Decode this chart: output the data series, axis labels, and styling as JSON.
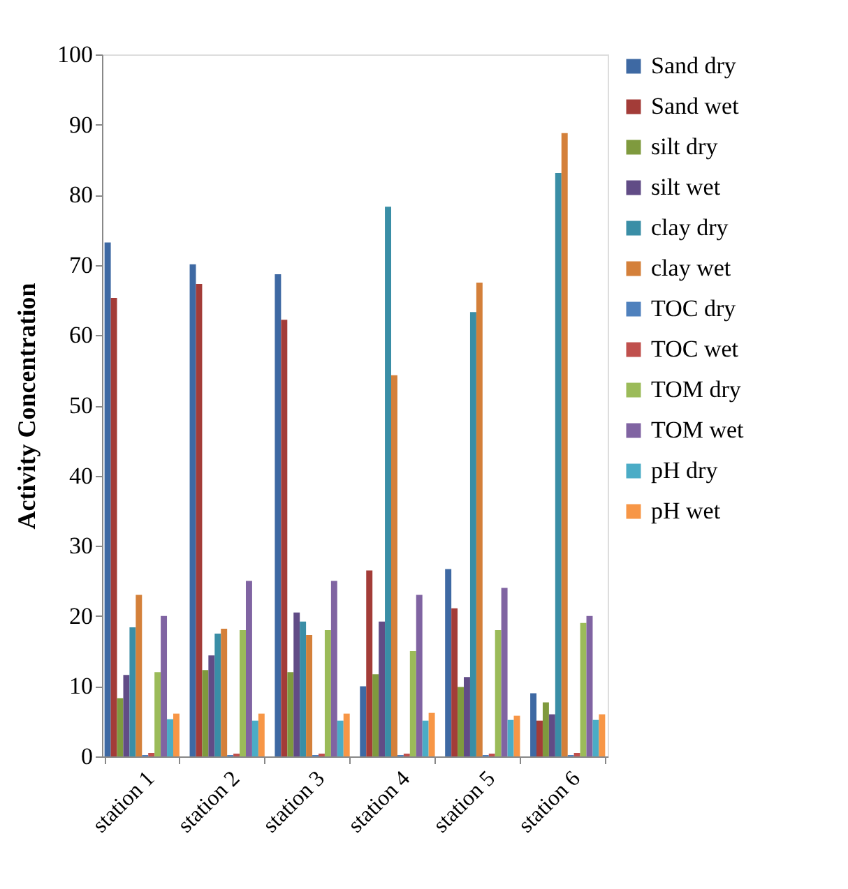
{
  "chart_data": {
    "type": "bar",
    "ylabel": "Activity Concentration",
    "categories": [
      "station 1",
      "station 2",
      "station 3",
      "station 4",
      "station 5",
      "station 6"
    ],
    "ylim": [
      0,
      100
    ],
    "yticks": [
      0,
      10,
      20,
      30,
      40,
      50,
      60,
      70,
      80,
      90,
      100
    ],
    "grid": false,
    "legend": "right",
    "series": [
      {
        "name": "Sand dry",
        "color": "#3e69a3",
        "values": [
          73.2,
          70.1,
          68.7,
          10,
          26.7,
          9
        ]
      },
      {
        "name": "Sand wet",
        "color": "#a33c38",
        "values": [
          65.3,
          67.3,
          62.2,
          26.5,
          21.1,
          5.1
        ]
      },
      {
        "name": "silt dry",
        "color": "#7f9a3e",
        "values": [
          8.3,
          12.3,
          12,
          11.7,
          9.9,
          7.7
        ]
      },
      {
        "name": "silt wet",
        "color": "#614c86",
        "values": [
          11.6,
          14.4,
          20.5,
          19.2,
          11.3,
          6
        ]
      },
      {
        "name": "clay dry",
        "color": "#3a8ea6",
        "values": [
          18.4,
          17.5,
          19.2,
          78.3,
          63.3,
          83.1
        ]
      },
      {
        "name": "clay wet",
        "color": "#d4803a",
        "values": [
          23,
          18.2,
          17.3,
          54.3,
          67.5,
          88.8
        ]
      },
      {
        "name": "TOC dry",
        "color": "#4f81bd",
        "values": [
          0.2,
          0.2,
          0.2,
          0.2,
          0.2,
          0.2
        ]
      },
      {
        "name": "TOC wet",
        "color": "#c0504d",
        "values": [
          0.5,
          0.4,
          0.4,
          0.4,
          0.4,
          0.5
        ]
      },
      {
        "name": "TOM dry",
        "color": "#9bbb59",
        "values": [
          12,
          18,
          18,
          15,
          18,
          19
        ]
      },
      {
        "name": "TOM wet",
        "color": "#8064a2",
        "values": [
          20,
          25,
          25,
          23,
          24,
          20
        ]
      },
      {
        "name": "pH dry",
        "color": "#4bacc6",
        "values": [
          5.3,
          5.1,
          5.1,
          5.1,
          5.2,
          5.2
        ]
      },
      {
        "name": "pH wet",
        "color": "#f79646",
        "values": [
          6.1,
          6.1,
          6.1,
          6.2,
          5.8,
          6
        ]
      }
    ]
  }
}
